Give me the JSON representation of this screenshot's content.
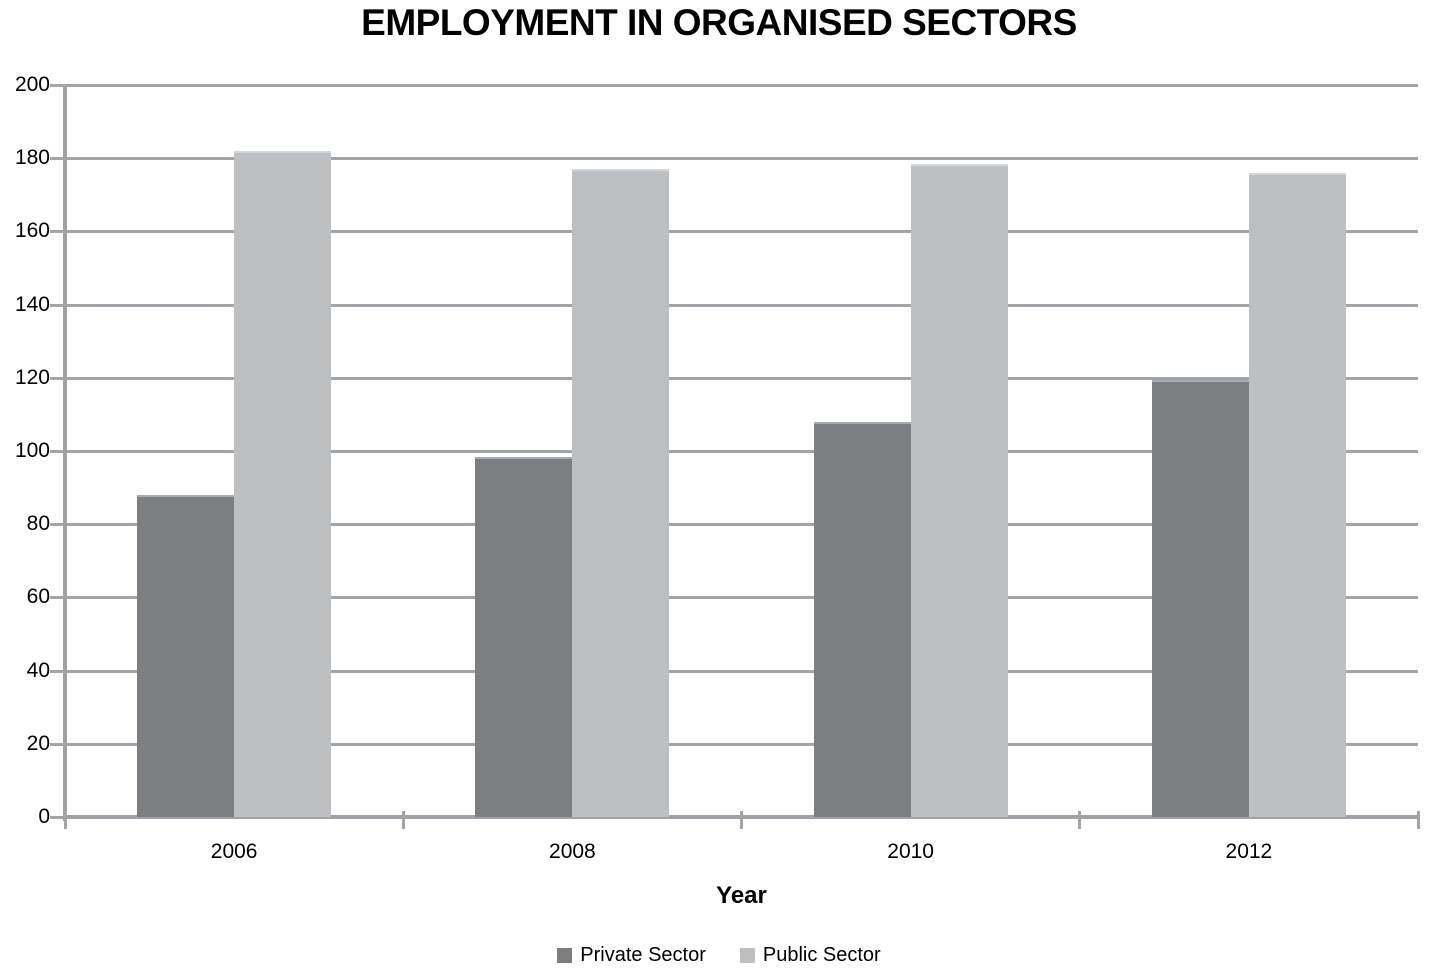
{
  "chart_data": {
    "type": "bar",
    "title": "EMPLOYMENT IN ORGANISED SECTORS",
    "xlabel": "Year",
    "categories": [
      "2006",
      "2008",
      "2010",
      "2012"
    ],
    "series": [
      {
        "name": "Private Sector",
        "color": "#7c7e81",
        "values": [
          88,
          98.5,
          108,
          119.5
        ]
      },
      {
        "name": "Public Sector",
        "color": "#bdbfc1",
        "values": [
          182,
          177,
          178.5,
          176
        ]
      }
    ],
    "ylim": [
      0,
      200
    ],
    "yticks": [
      0,
      20,
      40,
      60,
      80,
      100,
      120,
      140,
      160,
      180,
      200
    ],
    "grid": true,
    "gridline_color": "#a2a4a7",
    "axis_color": "#9fa1a5",
    "legend_position": "bottom"
  }
}
